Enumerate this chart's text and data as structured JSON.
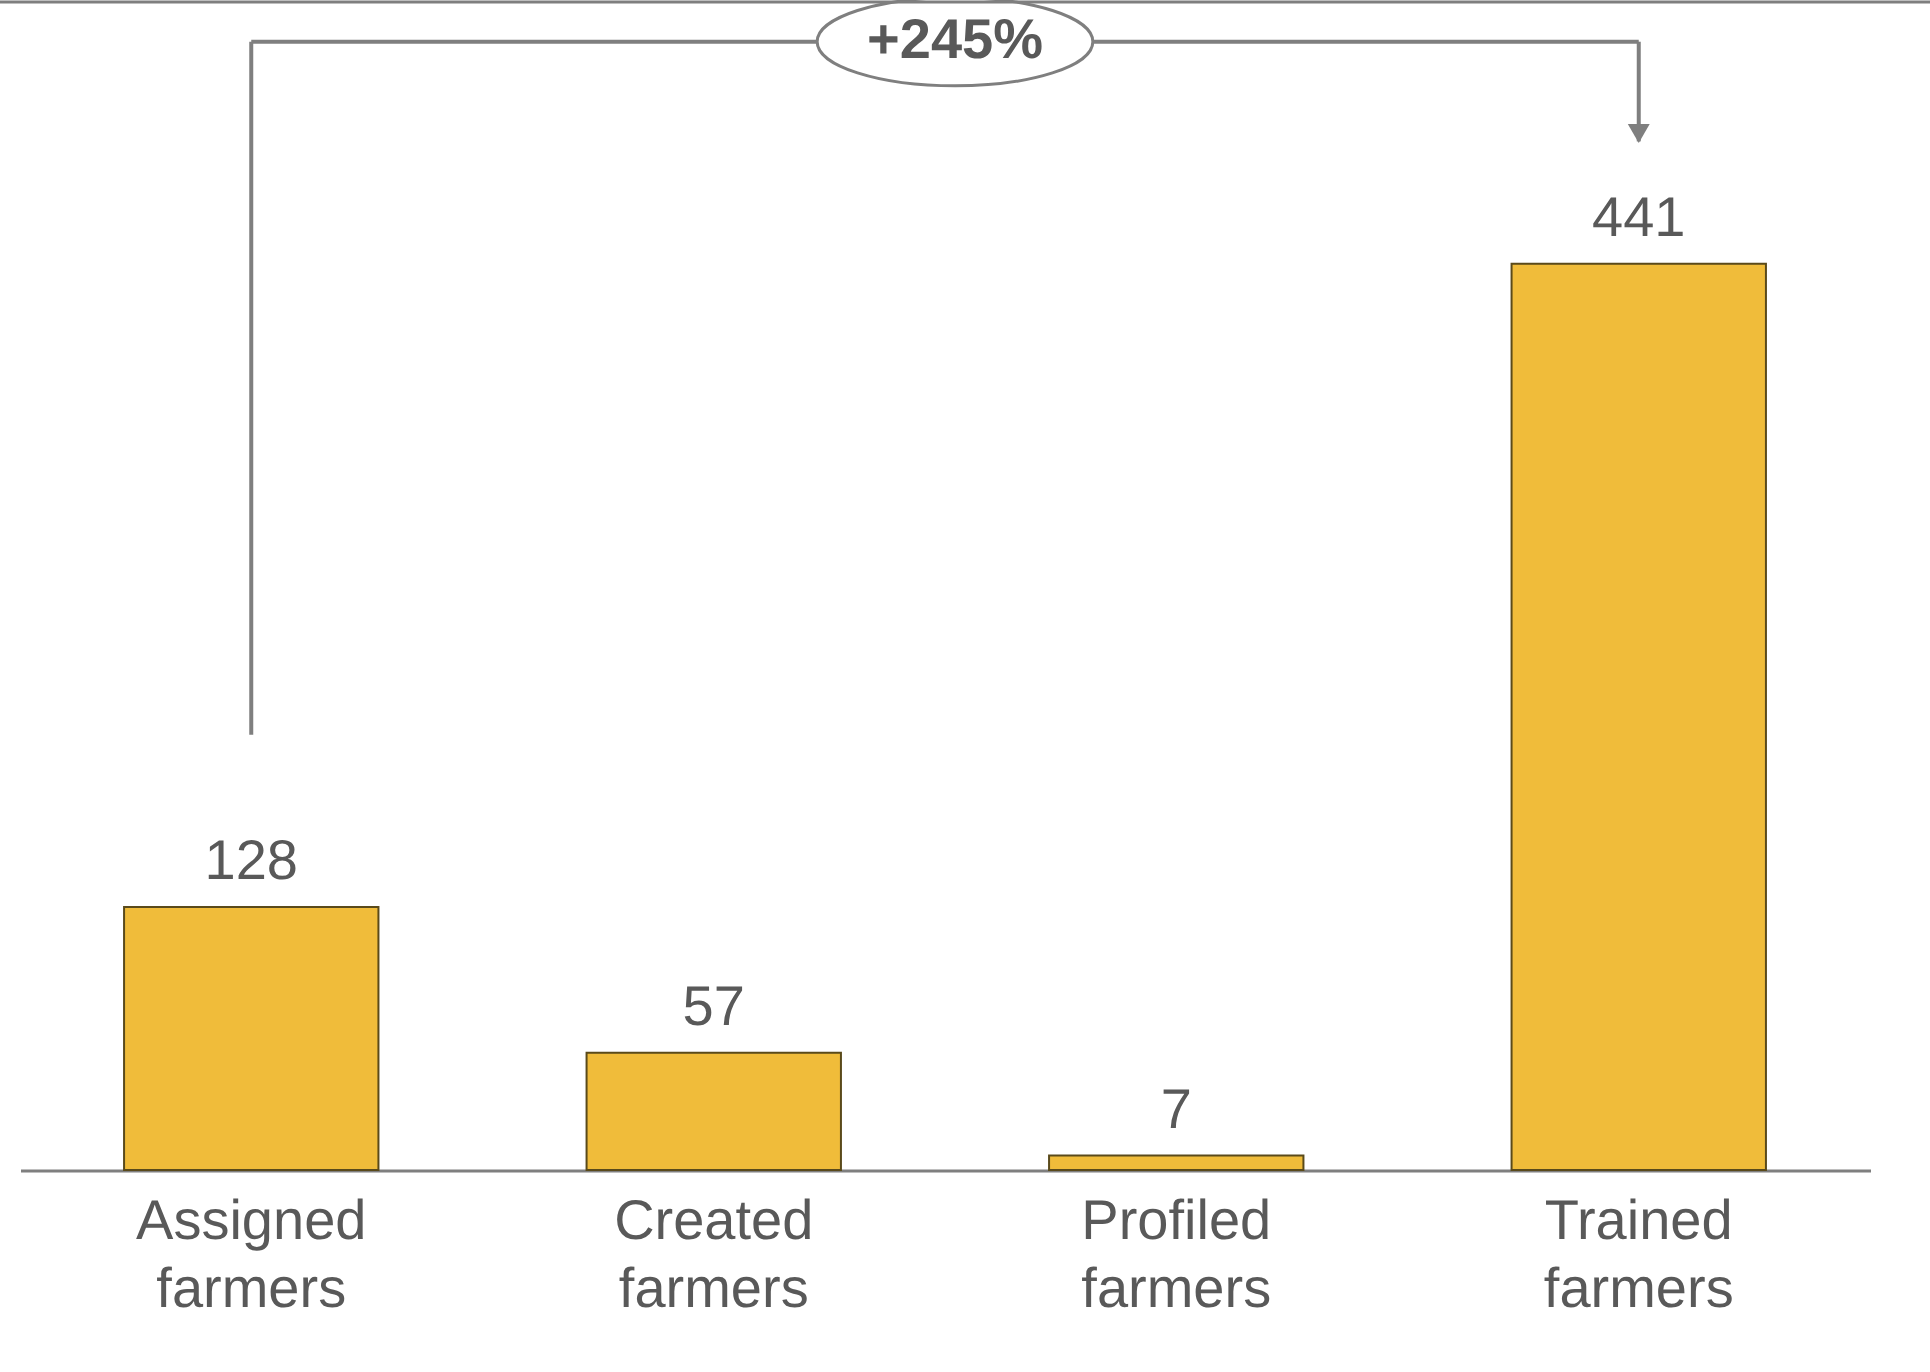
{
  "chart_data": {
    "type": "bar",
    "categories": [
      "Assigned farmers",
      "Created farmers",
      "Profiled farmers",
      "Trained farmers"
    ],
    "values": [
      128,
      57,
      7,
      441
    ],
    "color": "#f0bc3a",
    "data_labels": true,
    "annotations": [
      "+245%"
    ]
  }
}
